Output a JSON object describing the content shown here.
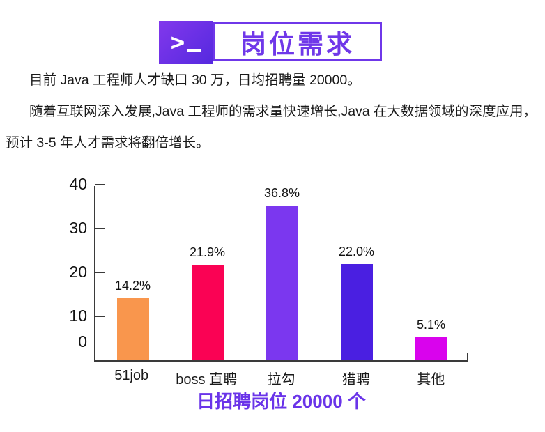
{
  "header": {
    "title": "岗位需求",
    "terminal_icon": "terminal-prompt"
  },
  "intro": {
    "lines": [
      {
        "text": "目前 Java 工程师人才缺口 30 万，日均招聘量 20000。",
        "indent": true
      },
      {
        "text": "随着互联网深入发展,Java 工程师的需求量快速增长,Java 在大数据领域的深度应用，",
        "indent": true
      },
      {
        "text": "预计 3-5 年人才需求将翻倍增长。",
        "indent": false
      }
    ]
  },
  "chart_data": {
    "type": "bar",
    "title": "",
    "categories": [
      "51job",
      "boss 直聘",
      "拉勾",
      "猎聘",
      "其他"
    ],
    "values": [
      14.2,
      21.9,
      36.8,
      22.0,
      5.1
    ],
    "labels": [
      "14.2%",
      "21.9%",
      "36.8%",
      "22.0%",
      "5.1%"
    ],
    "bar_colors": [
      "#F9964D",
      "#FA0254",
      "#7B37EF",
      "#4A1FE1",
      "#D903ED"
    ],
    "xlabel": "",
    "ylabel": "",
    "ylim": [
      0,
      40
    ],
    "yticks": [
      0,
      10,
      20,
      30,
      40
    ],
    "grid": false,
    "legend": false,
    "caption": "日招聘岗位 20000 个"
  },
  "colors": {
    "accent_purple": "#6F37E9",
    "caption_purple": "#6A34E9",
    "header_gradient_start": "#8238EC",
    "header_gradient_end": "#5529DF",
    "axis": "#3A3A3A",
    "text": "#1A1A1A"
  }
}
